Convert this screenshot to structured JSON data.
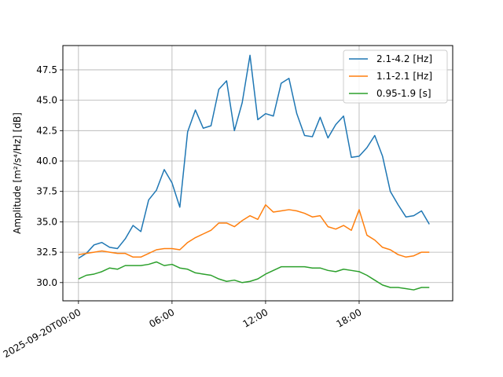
{
  "chart_data": {
    "type": "line",
    "title": "",
    "xlabel": "",
    "ylabel": "Amplitude [m²/s⁴/Hz] [dB]",
    "x_ticks": [
      "2025-09-20T00:00",
      "06:00",
      "12:00",
      "18:00"
    ],
    "x_tick_hours": [
      0,
      6,
      12,
      18
    ],
    "xlim": [
      -1,
      24
    ],
    "ylim": [
      28.5,
      49.5
    ],
    "y_ticks": [
      30.0,
      32.5,
      35.0,
      37.5,
      40.0,
      42.5,
      45.0,
      47.5
    ],
    "y_tick_labels": [
      "30.0",
      "32.5",
      "35.0",
      "37.5",
      "40.0",
      "42.5",
      "45.0",
      "47.5"
    ],
    "grid": true,
    "legend_position": "top-right",
    "x": [
      0.0,
      0.5,
      1.0,
      1.5,
      2.0,
      2.5,
      3.0,
      3.5,
      4.0,
      4.5,
      5.0,
      5.5,
      6.0,
      6.5,
      7.0,
      7.5,
      8.0,
      8.5,
      9.0,
      9.5,
      10.0,
      10.5,
      11.0,
      11.5,
      12.0,
      12.5,
      13.0,
      13.5,
      14.0,
      14.5,
      15.0,
      15.5,
      16.0,
      16.5,
      17.0,
      17.5,
      18.0,
      18.5,
      19.0,
      19.5,
      20.0,
      20.5,
      21.0,
      21.5,
      22.0,
      22.5,
      23.0
    ],
    "series": [
      {
        "name": "2.1-4.2 [Hz]",
        "color": "#1f77b4",
        "values": [
          32.0,
          32.4,
          33.1,
          33.3,
          32.9,
          32.8,
          33.6,
          34.7,
          34.2,
          36.8,
          37.6,
          39.3,
          38.2,
          36.2,
          42.4,
          44.2,
          42.7,
          42.9,
          45.9,
          46.6,
          42.5,
          44.8,
          48.7,
          43.4,
          43.9,
          43.7,
          46.4,
          46.8,
          43.9,
          42.1,
          42.0,
          43.6,
          41.9,
          43.0,
          43.7,
          40.3,
          40.4,
          41.1,
          42.1,
          40.4,
          37.5,
          36.4,
          35.4,
          35.5,
          35.9,
          34.8,
          null
        ]
      },
      {
        "name": "1.1-2.1 [Hz]",
        "color": "#ff7f0e",
        "values": [
          32.3,
          32.4,
          32.5,
          32.6,
          32.5,
          32.4,
          32.4,
          32.1,
          32.1,
          32.4,
          32.7,
          32.8,
          32.8,
          32.7,
          33.3,
          33.7,
          34.0,
          34.3,
          34.9,
          34.9,
          34.6,
          35.1,
          35.5,
          35.2,
          36.4,
          35.8,
          35.9,
          36.0,
          35.9,
          35.7,
          35.4,
          35.5,
          34.6,
          34.4,
          34.7,
          34.3,
          36.0,
          33.9,
          33.5,
          32.9,
          32.7,
          32.3,
          32.1,
          32.2,
          32.5,
          32.5,
          null
        ]
      },
      {
        "name": "0.95-1.9 [s]",
        "color": "#2ca02c",
        "values": [
          30.3,
          30.6,
          30.7,
          30.9,
          31.2,
          31.1,
          31.4,
          31.4,
          31.4,
          31.5,
          31.7,
          31.4,
          31.5,
          31.2,
          31.1,
          30.8,
          30.7,
          30.6,
          30.3,
          30.1,
          30.2,
          30.0,
          30.1,
          30.3,
          30.7,
          31.0,
          31.3,
          31.3,
          31.3,
          31.3,
          31.2,
          31.2,
          31.0,
          30.9,
          31.1,
          31.0,
          30.9,
          30.6,
          30.2,
          29.8,
          29.6,
          29.6,
          29.5,
          29.4,
          29.6,
          29.6,
          null
        ]
      }
    ]
  }
}
